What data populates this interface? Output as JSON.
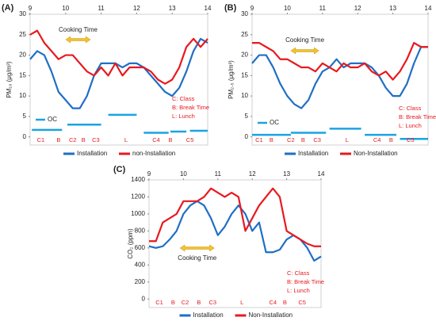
{
  "chart_data": [
    {
      "type": "line",
      "panel_label": "(A)",
      "y_label": "PM₁₀ (μg/m³)",
      "x": [
        9,
        9.2,
        9.4,
        9.6,
        9.8,
        10,
        10.2,
        10.4,
        10.6,
        10.8,
        11,
        11.2,
        11.4,
        11.6,
        11.8,
        12,
        12.2,
        12.4,
        12.6,
        12.8,
        13,
        13.2,
        13.4,
        13.6,
        13.8,
        14
      ],
      "xlim": [
        9,
        14
      ],
      "xticks": [
        9,
        10,
        11,
        12,
        13,
        14
      ],
      "ylim": [
        -2,
        30
      ],
      "yticks": [
        0,
        5,
        10,
        15,
        20,
        25,
        30
      ],
      "series": [
        {
          "name": "Installation",
          "color": "#1f6fc5",
          "values": [
            19,
            21,
            20,
            16,
            11,
            9,
            7,
            7,
            10,
            15,
            18,
            18,
            18,
            17,
            18,
            18,
            17,
            15,
            13,
            11,
            10,
            12,
            16,
            21,
            24,
            23
          ]
        },
        {
          "name": "non-Installation",
          "color": "#e8191f",
          "values": [
            25,
            26,
            23,
            21,
            19,
            20,
            20,
            18,
            16,
            15,
            17,
            15,
            18,
            15,
            17,
            17,
            17,
            16,
            14,
            13,
            14,
            17,
            22,
            24,
            22,
            24
          ]
        }
      ],
      "oc": {
        "name": "OC",
        "color": "#1aa3e0",
        "segments": [
          {
            "start": 9.05,
            "end": 9.9,
            "value": 1.7
          },
          {
            "start": 10.05,
            "end": 11,
            "value": 3
          },
          {
            "start": 11.2,
            "end": 12,
            "value": 5.4
          },
          {
            "start": 12.2,
            "end": 12.9,
            "value": 1
          },
          {
            "start": 12.95,
            "end": 13.4,
            "value": 1.3
          },
          {
            "start": 13.5,
            "end": 14,
            "value": 1.5
          }
        ]
      },
      "cooking_time": {
        "label": "Cooking Time",
        "start": 10,
        "end": 10.7
      },
      "key": [
        "C: Class",
        "B: Break Time",
        "L: Lunch"
      ],
      "periods": [
        {
          "label": "C1",
          "x": 9.3
        },
        {
          "label": "B",
          "x": 9.8
        },
        {
          "label": "C2",
          "x": 10.2
        },
        {
          "label": "B",
          "x": 10.5
        },
        {
          "label": "C3",
          "x": 10.85
        },
        {
          "label": "L",
          "x": 11.7
        },
        {
          "label": "C4",
          "x": 12.55
        },
        {
          "label": "B",
          "x": 12.95
        },
        {
          "label": "C5",
          "x": 13.5
        }
      ]
    },
    {
      "type": "line",
      "panel_label": "(B)",
      "y_label": "PM₂.₅ (μg/m³)",
      "x": [
        9,
        9.2,
        9.4,
        9.6,
        9.8,
        10,
        10.2,
        10.4,
        10.6,
        10.8,
        11,
        11.2,
        11.4,
        11.6,
        11.8,
        12,
        12.2,
        12.4,
        12.6,
        12.8,
        13,
        13.2,
        13.4,
        13.6,
        13.8,
        14
      ],
      "xlim": [
        9,
        14
      ],
      "xticks": [
        9,
        10,
        11,
        12,
        13,
        14
      ],
      "ylim": [
        -2,
        30
      ],
      "yticks": [
        0,
        5,
        10,
        15,
        20,
        25,
        30
      ],
      "series": [
        {
          "name": "Installation",
          "color": "#1f6fc5",
          "values": [
            18,
            20,
            20,
            17,
            13,
            10,
            8,
            7,
            9,
            13,
            16,
            17,
            19,
            17,
            18,
            18,
            18,
            17,
            15,
            12,
            10,
            10,
            13,
            18,
            22,
            22
          ]
        },
        {
          "name": "Non-Installation",
          "color": "#e8191f",
          "values": [
            23,
            23,
            22,
            21,
            19,
            19,
            18,
            17,
            17,
            16,
            18,
            17,
            16,
            18,
            17,
            17,
            18,
            16,
            15,
            16,
            14,
            16,
            19,
            23,
            22,
            22
          ]
        }
      ],
      "oc": {
        "name": "OC",
        "color": "#1aa3e0",
        "segments": [
          {
            "start": 9,
            "end": 10.1,
            "value": 0.5
          },
          {
            "start": 10.1,
            "end": 11.1,
            "value": 1
          },
          {
            "start": 11.2,
            "end": 12.1,
            "value": 2
          },
          {
            "start": 12.2,
            "end": 13.1,
            "value": 0.5
          },
          {
            "start": 13.2,
            "end": 14,
            "value": -0.5
          }
        ]
      },
      "cooking_time": {
        "label": "Cooking Time",
        "start": 10.1,
        "end": 10.9
      },
      "key": [
        "C: Class",
        "B: Break Time",
        "L: Lunch"
      ],
      "periods": [
        {
          "label": "C1",
          "x": 9.2
        },
        {
          "label": "B",
          "x": 9.55
        },
        {
          "label": "C2",
          "x": 10.1
        },
        {
          "label": "B",
          "x": 10.45
        },
        {
          "label": "C3",
          "x": 10.85
        },
        {
          "label": "L",
          "x": 11.7
        },
        {
          "label": "C4",
          "x": 12.55
        },
        {
          "label": "B",
          "x": 12.95
        },
        {
          "label": "C5",
          "x": 13.5
        }
      ]
    },
    {
      "type": "line",
      "panel_label": "(C)",
      "y_label": "CO₂ (ppm)",
      "x": [
        9,
        9.2,
        9.4,
        9.6,
        9.8,
        10,
        10.2,
        10.4,
        10.6,
        10.8,
        11,
        11.2,
        11.4,
        11.6,
        11.8,
        12,
        12.2,
        12.4,
        12.6,
        12.8,
        13,
        13.2,
        13.4,
        13.6,
        13.8,
        14
      ],
      "xlim": [
        9,
        14
      ],
      "xticks": [
        9,
        10,
        11,
        12,
        13,
        14
      ],
      "ylim": [
        -100,
        1400
      ],
      "yticks": [
        0,
        200,
        400,
        600,
        800,
        1000,
        1200,
        1400
      ],
      "series": [
        {
          "name": "Installation",
          "color": "#1f6fc5",
          "values": [
            620,
            600,
            620,
            700,
            800,
            1000,
            1100,
            1150,
            1100,
            950,
            750,
            850,
            1000,
            1100,
            1000,
            800,
            900,
            550,
            550,
            580,
            700,
            750,
            700,
            600,
            450,
            500
          ]
        },
        {
          "name": "Non-Installation",
          "color": "#e8191f",
          "values": [
            680,
            680,
            900,
            950,
            1000,
            1150,
            1150,
            1150,
            1200,
            1300,
            1250,
            1200,
            1250,
            1200,
            800,
            950,
            1100,
            1200,
            1300,
            1200,
            800,
            750,
            700,
            650,
            620,
            620
          ]
        }
      ],
      "cooking_time": {
        "label": "Cooking Time",
        "start": 9.9,
        "end": 10.9
      },
      "key": [
        "C: Class",
        "B: Break Time",
        "L: Lunch"
      ],
      "periods": [
        {
          "label": "C1",
          "x": 9.3
        },
        {
          "label": "B",
          "x": 9.7
        },
        {
          "label": "C2",
          "x": 10.05
        },
        {
          "label": "B",
          "x": 10.45
        },
        {
          "label": "C3",
          "x": 10.85
        },
        {
          "label": "L",
          "x": 11.7
        },
        {
          "label": "C4",
          "x": 12.6
        },
        {
          "label": "B",
          "x": 12.95
        },
        {
          "label": "C5",
          "x": 13.45
        }
      ]
    }
  ]
}
